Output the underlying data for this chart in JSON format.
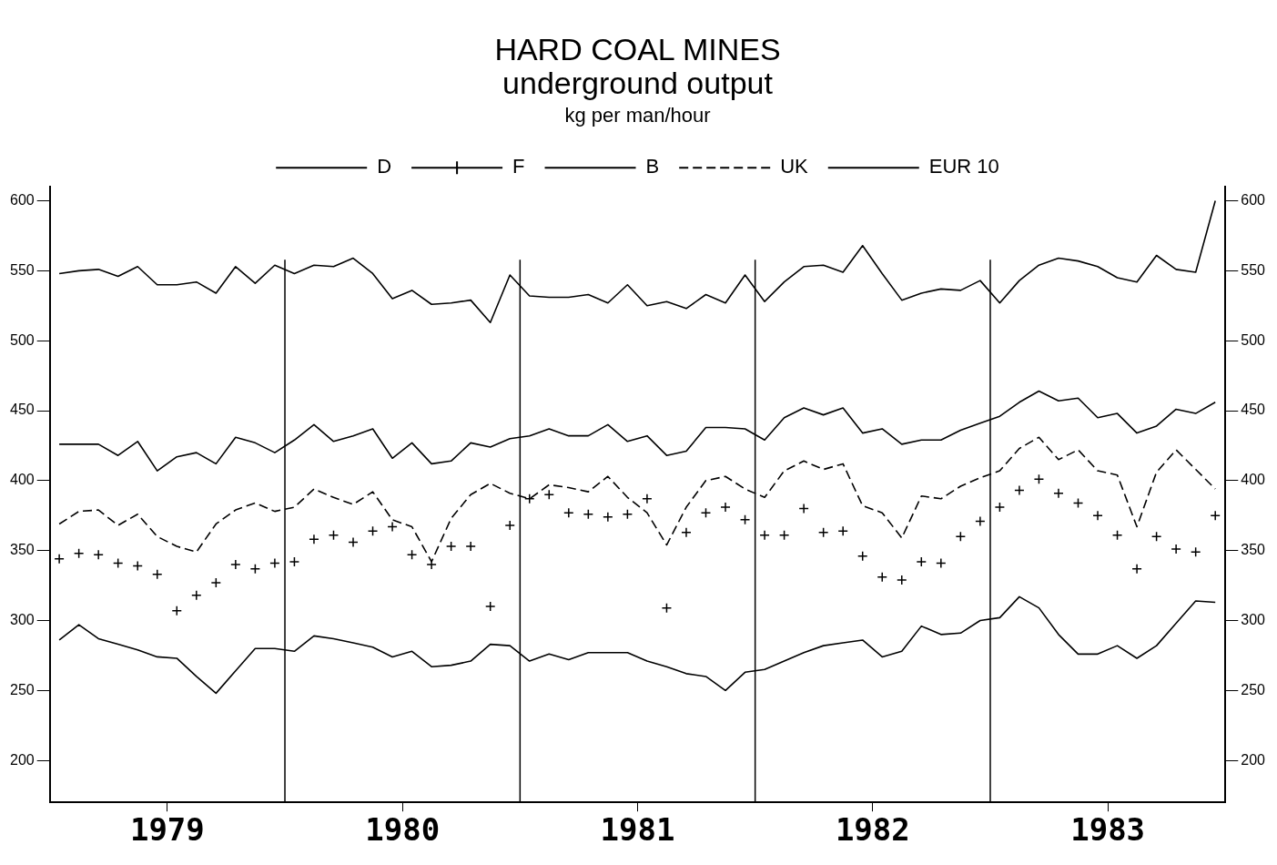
{
  "chart_data": {
    "type": "line",
    "title": "HARD COAL MINES\nunderground output",
    "subtitle": "kg per man/hour",
    "x": [
      "1979-01-16",
      "1979-02-16",
      "1979-03-16",
      "1979-04-16",
      "1979-05-16",
      "1979-06-16",
      "1979-07-16",
      "1979-08-16",
      "1979-09-16",
      "1979-10-16",
      "1979-11-16",
      "1979-12-16",
      "1980-01-16",
      "1980-02-16",
      "1980-03-16",
      "1980-04-16",
      "1980-05-16",
      "1980-06-16",
      "1980-07-16",
      "1980-08-16",
      "1980-09-16",
      "1980-10-16",
      "1980-11-16",
      "1980-12-16",
      "1981-01-16",
      "1981-02-16",
      "1981-03-16",
      "1981-04-16",
      "1981-05-16",
      "1981-06-16",
      "1981-07-16",
      "1981-08-16",
      "1981-09-16",
      "1981-10-16",
      "1981-11-16",
      "1981-12-16",
      "1982-01-16",
      "1982-02-16",
      "1982-03-16",
      "1982-04-16",
      "1982-05-16",
      "1982-06-16",
      "1982-07-16",
      "1982-08-16",
      "1982-09-16",
      "1982-10-16",
      "1982-11-16",
      "1982-12-16",
      "1983-01-16",
      "1983-02-16",
      "1983-03-16",
      "1983-04-16",
      "1983-05-16",
      "1983-06-16",
      "1983-07-16",
      "1983-08-16",
      "1983-09-16",
      "1983-10-16",
      "1983-11-16",
      "1983-12-16"
    ],
    "series": [
      {
        "name": "D",
        "color": "#000000",
        "line_style": "solid",
        "values": [
          548,
          550,
          551,
          546,
          553,
          540,
          540,
          542,
          534,
          553,
          541,
          554,
          548,
          554,
          553,
          559,
          548,
          530,
          536,
          526,
          527,
          529,
          513,
          547,
          532,
          531,
          531,
          533,
          527,
          540,
          525,
          528,
          523,
          533,
          527,
          547,
          528,
          542,
          553,
          554,
          549,
          568,
          548,
          529,
          534,
          537,
          536,
          543,
          527,
          543,
          554,
          559,
          557,
          553,
          545,
          542,
          561,
          551,
          549,
          600
        ]
      },
      {
        "name": "F",
        "type": "scatter",
        "color": "#000000",
        "marker": "cross",
        "values": [
          344,
          348,
          347,
          341,
          339,
          333,
          307,
          318,
          327,
          340,
          337,
          341,
          342,
          358,
          361,
          356,
          364,
          367,
          347,
          340,
          353,
          353,
          310,
          368,
          387,
          390,
          377,
          376,
          374,
          376,
          387,
          309,
          363,
          377,
          381,
          372,
          361,
          361,
          380,
          363,
          364,
          346,
          331,
          329,
          342,
          341,
          360,
          371,
          381,
          393,
          401,
          391,
          384,
          375,
          361,
          337,
          360,
          351,
          349,
          375
        ]
      },
      {
        "name": "B",
        "color": "#000000",
        "line_style": "solid",
        "values": [
          286,
          297,
          287,
          283,
          279,
          274,
          273,
          260,
          248,
          264,
          280,
          280,
          278,
          289,
          287,
          284,
          281,
          274,
          278,
          267,
          268,
          271,
          283,
          282,
          271,
          276,
          272,
          277,
          277,
          277,
          271,
          267,
          262,
          260,
          250,
          263,
          265,
          271,
          277,
          282,
          284,
          286,
          274,
          278,
          296,
          290,
          291,
          300,
          302,
          317,
          309,
          290,
          276,
          276,
          282,
          273,
          282,
          298,
          314,
          313
        ]
      },
      {
        "name": "UK",
        "color": "#000000",
        "line_style": "dashed",
        "values": [
          369,
          378,
          379,
          368,
          376,
          360,
          353,
          349,
          369,
          379,
          384,
          378,
          381,
          394,
          388,
          383,
          392,
          372,
          367,
          342,
          373,
          390,
          398,
          391,
          387,
          397,
          395,
          392,
          403,
          388,
          377,
          354,
          381,
          400,
          403,
          394,
          388,
          407,
          414,
          408,
          412,
          382,
          377,
          359,
          389,
          387,
          396,
          402,
          407,
          423,
          431,
          415,
          422,
          407,
          404,
          367,
          406,
          422,
          408,
          394
        ]
      },
      {
        "name": "EUR 10",
        "color": "#000000",
        "line_style": "solid",
        "values": [
          426,
          426,
          426,
          418,
          428,
          407,
          417,
          420,
          412,
          431,
          427,
          420,
          429,
          440,
          428,
          432,
          437,
          416,
          427,
          412,
          414,
          427,
          424,
          430,
          432,
          437,
          432,
          432,
          440,
          428,
          432,
          418,
          421,
          438,
          438,
          437,
          429,
          445,
          452,
          447,
          452,
          434,
          437,
          426,
          429,
          429,
          436,
          441,
          446,
          456,
          464,
          457,
          459,
          445,
          448,
          434,
          439,
          451,
          448,
          456
        ]
      }
    ],
    "xlim": [
      "1979-01-01",
      "1984-01-01"
    ],
    "xticks": [
      {
        "value": "1979-07-01",
        "label": "1979"
      },
      {
        "value": "1980-07-01",
        "label": "1980"
      },
      {
        "value": "1981-07-01",
        "label": "1981"
      },
      {
        "value": "1982-07-01",
        "label": "1982"
      },
      {
        "value": "1983-07-01",
        "label": "1983"
      }
    ],
    "ylim": [
      170,
      610
    ],
    "yticks": [
      200,
      250,
      300,
      350,
      400,
      450,
      500,
      550,
      600
    ],
    "y2lim": [
      170,
      610
    ],
    "y2ticks": [
      200,
      250,
      300,
      350,
      400,
      450,
      500,
      550,
      600
    ],
    "ref_lines": [
      {
        "axis": "x",
        "value": "1980-01-01"
      },
      {
        "axis": "x",
        "value": "1981-01-01"
      },
      {
        "axis": "x",
        "value": "1982-01-01"
      },
      {
        "axis": "x",
        "value": "1983-01-01"
      }
    ],
    "legend": "top",
    "marker": "none"
  }
}
